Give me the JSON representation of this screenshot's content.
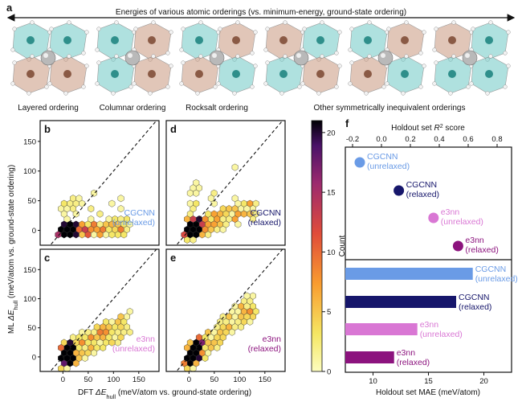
{
  "panel_a": {
    "letter": "a",
    "title": "Energies of various atomic orderings (vs. minimum-energy, ground-state ordering)",
    "orderings": [
      "Layered ordering",
      "Columnar ordering",
      "Rocksalt ordering",
      "Other symmetrically inequivalent orderings"
    ]
  },
  "panels": {
    "b": {
      "letter": "b",
      "model": "CGCNN",
      "state": "(unrelaxed)",
      "color": "#6a9be6"
    },
    "c": {
      "letter": "c",
      "model": "e3nn",
      "state": "(unrelaxed)",
      "color": "#d977d4"
    },
    "d": {
      "letter": "d",
      "model": "CGCNN",
      "state": "(relaxed)",
      "color": "#16166b"
    },
    "e": {
      "letter": "e",
      "model": "e3nn",
      "state": "(relaxed)",
      "color": "#8c137e"
    }
  },
  "shared_axes": {
    "ylabel_prefix": "ML ",
    "ylabel_sym": "ΔE",
    "ylabel_sub": "hull",
    "ylabel_suffix": " (meV/atom vs. ground-state ordering)",
    "xlabel_prefix": "DFT ",
    "xlabel_sym": "ΔE",
    "xlabel_sub": "hull",
    "xlabel_suffix": " (meV/atom vs. ground-state ordering)",
    "yticks": [
      "0",
      "50",
      "100",
      "150"
    ],
    "xticks": [
      "0",
      "50",
      "100",
      "150"
    ]
  },
  "colorbar": {
    "label": "Count",
    "ticks": [
      "0",
      "5",
      "10",
      "15",
      "20"
    ],
    "max": 21
  },
  "panel_f": {
    "letter": "f",
    "top_axis_label_prefix": "Holdout set ",
    "top_axis_label_sym": "R",
    "top_axis_label_sup": "2",
    "top_axis_label_suffix": " score",
    "bottom_axis_label": "Holdout set MAE (meV/atom)"
  },
  "chart_data": [
    {
      "type": "scatter",
      "title": "Holdout set R² score",
      "xlabel": "Holdout set R² score",
      "xlim": [
        -0.25,
        0.9
      ],
      "xticks": [
        "-0.2",
        "0.0",
        "0.2",
        "0.4",
        "0.6",
        "0.8"
      ],
      "points": [
        {
          "model": "CGCNN",
          "state": "(unrelaxed)",
          "r2": -0.15,
          "color": "#6a9be6"
        },
        {
          "model": "CGCNN",
          "state": "(relaxed)",
          "r2": 0.12,
          "color": "#16166b"
        },
        {
          "model": "e3nn",
          "state": "(unrelaxed)",
          "r2": 0.36,
          "color": "#d977d4"
        },
        {
          "model": "e3nn",
          "state": "(relaxed)",
          "r2": 0.53,
          "color": "#8c137e"
        }
      ]
    },
    {
      "type": "bar",
      "title": "Holdout set MAE (meV/atom)",
      "xlabel": "Holdout set MAE (meV/atom)",
      "xlim": [
        7.5,
        22.5
      ],
      "xticks": [
        "10",
        "15",
        "20"
      ],
      "bars": [
        {
          "model": "CGCNN",
          "state": "(unrelaxed)",
          "mae": 19.0,
          "color": "#6a9be6"
        },
        {
          "model": "CGCNN",
          "state": "(relaxed)",
          "mae": 17.5,
          "color": "#16166b"
        },
        {
          "model": "e3nn",
          "state": "(unrelaxed)",
          "mae": 14.0,
          "color": "#d977d4"
        },
        {
          "model": "e3nn",
          "state": "(relaxed)",
          "mae": 11.9,
          "color": "#8c137e"
        }
      ]
    },
    {
      "type": "heatmap",
      "subtype": "hexbin",
      "panels": [
        "b",
        "c",
        "d",
        "e"
      ],
      "xlim": [
        -45,
        190
      ],
      "ylim": [
        -25,
        185
      ],
      "xlabel": "DFT ΔE_hull (meV/atom vs. ground-state ordering)",
      "ylabel": "ML ΔE_hull (meV/atom vs. ground-state ordering)",
      "clim": [
        0,
        21
      ]
    }
  ]
}
